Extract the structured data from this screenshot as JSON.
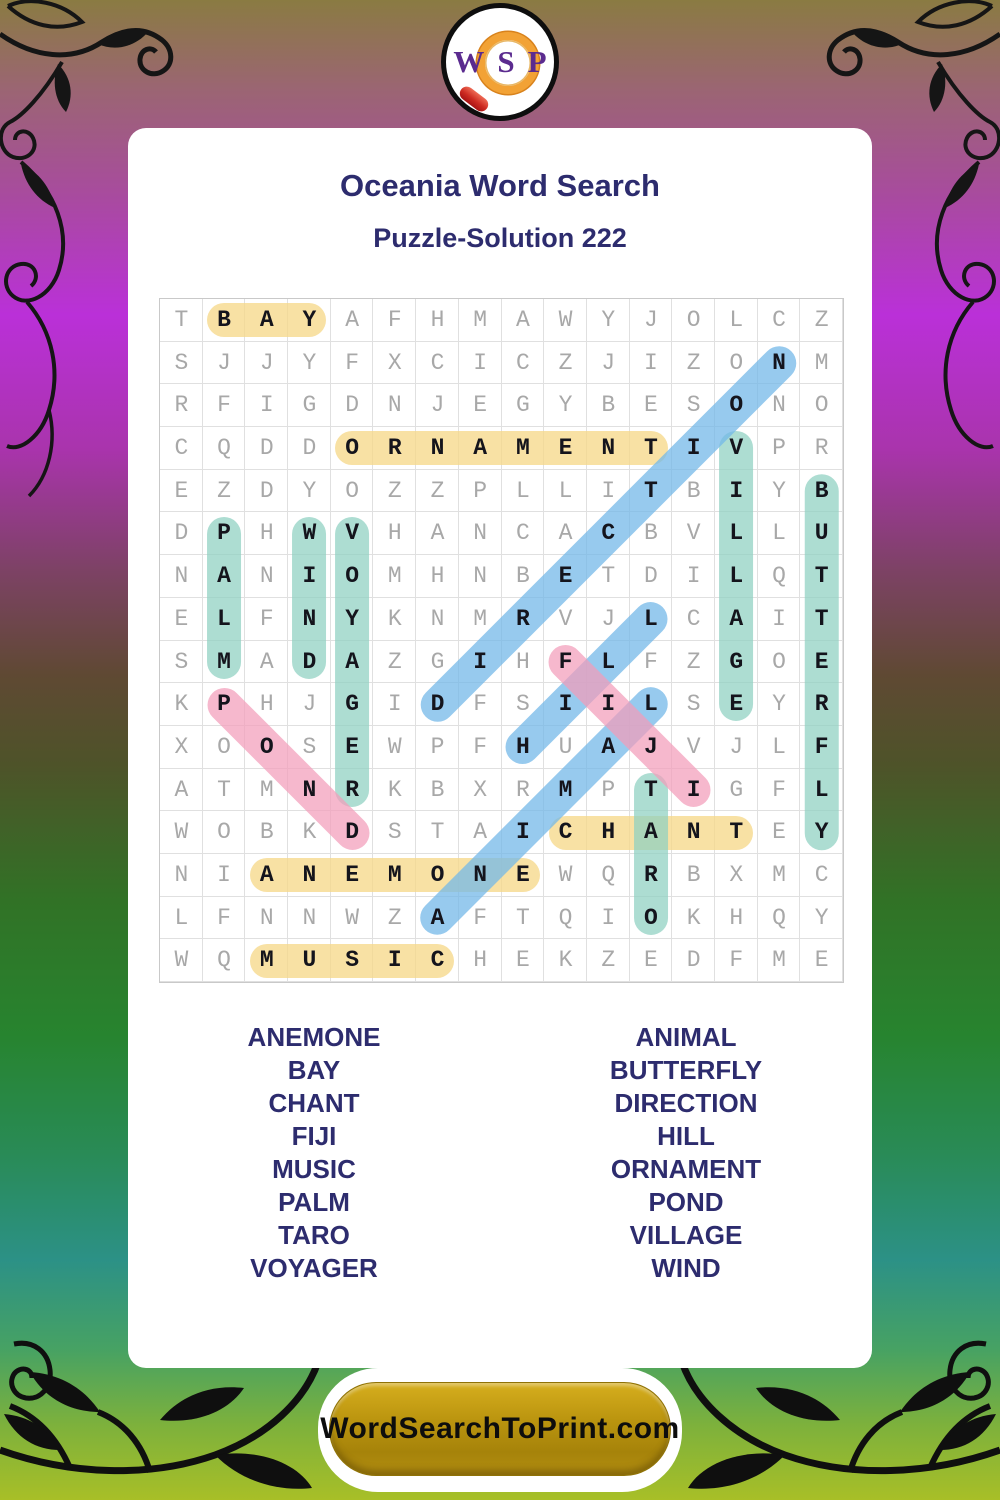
{
  "logo": {
    "letters": [
      "W",
      "S",
      "P"
    ]
  },
  "header": {
    "title": "Oceania Word Search",
    "subtitle": "Puzzle-Solution 222"
  },
  "puzzle": {
    "grid": [
      "TBAYAFHMAWYJOLCZ",
      "SJJYFXCICZJIZONM",
      "RFIGDNJEGYBESONO",
      "CQDDORNAMENTIVPR",
      "EZDYOZZPLLITBIYB",
      "DPHWVHANCACBVLLU",
      "NANIOMHNBETDILQT",
      "ELFNYKNMRVJLCAIT",
      "SMADAZGIHFLFZGOE",
      "KPHJGIDFSIILSEYR",
      "XOOSEWPFHUAJVJLF",
      "ATMNRKBXRMPTIGFL",
      "WOBKDSTAICHANTEY",
      "NIANEMONEWQRBXMC",
      "LFNNWZAFTQIOKHQY",
      "WQMUSICHEKZEDFME"
    ],
    "solutions": [
      {
        "word": "BAY",
        "row": 1,
        "col": 2,
        "dir": "H",
        "color": "yellow"
      },
      {
        "word": "ORNAMENT",
        "row": 4,
        "col": 5,
        "dir": "H",
        "color": "yellow"
      },
      {
        "word": "CHANT",
        "row": 13,
        "col": 10,
        "dir": "H",
        "color": "yellow"
      },
      {
        "word": "ANEMONE",
        "row": 14,
        "col": 3,
        "dir": "H",
        "color": "yellow"
      },
      {
        "word": "MUSIC",
        "row": 16,
        "col": 3,
        "dir": "H",
        "color": "yellow"
      },
      {
        "word": "PALM",
        "row": 6,
        "col": 2,
        "dir": "V",
        "color": "teal"
      },
      {
        "word": "WIND",
        "row": 6,
        "col": 4,
        "dir": "V",
        "color": "teal"
      },
      {
        "word": "VOYAGER",
        "row": 6,
        "col": 5,
        "dir": "V",
        "color": "teal"
      },
      {
        "word": "VILLAGE",
        "row": 4,
        "col": 14,
        "dir": "V",
        "color": "teal"
      },
      {
        "word": "TARO",
        "row": 12,
        "col": 12,
        "dir": "V",
        "color": "teal"
      },
      {
        "word": "BUTTERFLY",
        "row": 5,
        "col": 16,
        "dir": "V",
        "color": "teal"
      },
      {
        "word": "DIRECTION",
        "row": 10,
        "col": 7,
        "dir": "UR",
        "color": "blue"
      },
      {
        "word": "HILL",
        "row": 11,
        "col": 9,
        "dir": "UR",
        "color": "blue"
      },
      {
        "word": "ANIMAL",
        "row": 15,
        "col": 7,
        "dir": "UR",
        "color": "blue"
      },
      {
        "word": "POND",
        "row": 10,
        "col": 2,
        "dir": "DR",
        "color": "pink"
      },
      {
        "word": "FIJI",
        "row": 9,
        "col": 10,
        "dir": "DR",
        "color": "pink"
      }
    ],
    "palette": {
      "yellow": "rgba(246,216,138,0.78)",
      "teal": "rgba(142,208,193,0.72)",
      "blue": "rgba(116,184,232,0.75)",
      "pink": "rgba(243,156,186,0.72)"
    }
  },
  "word_list": {
    "left": [
      "ANEMONE",
      "BAY",
      "CHANT",
      "FIJI",
      "MUSIC",
      "PALM",
      "TARO",
      "VOYAGER"
    ],
    "right": [
      "ANIMAL",
      "BUTTERFLY",
      "DIRECTION",
      "HILL",
      "ORNAMENT",
      "POND",
      "VILLAGE",
      "WIND"
    ]
  },
  "footer": {
    "site_label": "WordSearchToPrint.com"
  },
  "colors": {
    "title_text": "#2d2c6e",
    "logo_letter": "#5b2b8f",
    "button_gold": "#b28e11"
  }
}
